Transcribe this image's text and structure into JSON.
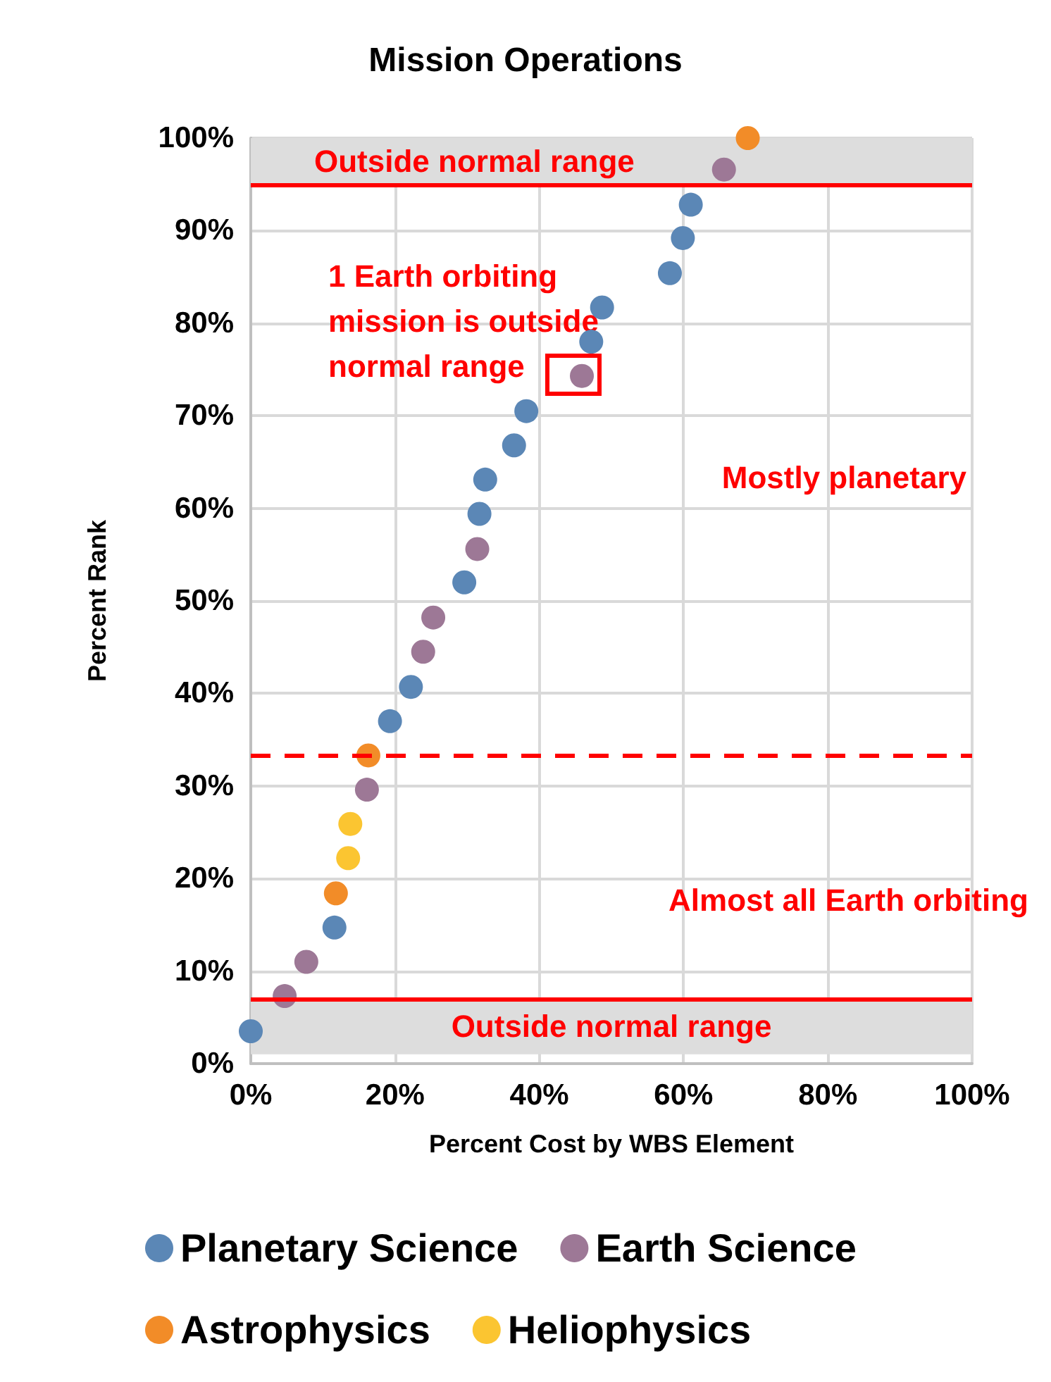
{
  "chart_data": {
    "type": "scatter",
    "title": "Mission Operations",
    "xlabel": "Percent Cost by WBS Element",
    "ylabel": "Percent Rank",
    "series": [
      {
        "name": "Planetary Science",
        "color": "#5b87b6",
        "x": [
          0,
          11.6,
          19.3,
          22.2,
          29.6,
          31.7,
          32.5,
          36.5,
          38.2,
          47.2,
          48.7,
          58.1,
          59.9,
          61.0
        ],
        "values": [
          3.5,
          14.7,
          37.0,
          40.7,
          52.0,
          59.4,
          63.1,
          66.8,
          70.5,
          78.0,
          81.7,
          85.4,
          89.2,
          92.8
        ]
      },
      {
        "name": "Earth Science",
        "color": "#9d7896",
        "x": [
          4.7,
          7.7,
          16.1,
          23.9,
          25.3,
          31.4,
          45.9,
          65.6
        ],
        "values": [
          7.3,
          11.0,
          29.6,
          44.5,
          48.2,
          55.6,
          74.3,
          96.6
        ]
      },
      {
        "name": "Astrophysics",
        "color": "#f28c28",
        "x": [
          11.8,
          16.3,
          68.9
        ],
        "values": [
          18.4,
          33.3,
          100
        ]
      },
      {
        "name": "Heliophysics",
        "color": "#fbc531",
        "x": [
          13.5,
          13.8
        ],
        "values": [
          22.2,
          25.9
        ]
      }
    ],
    "xlim": [
      0,
      100
    ],
    "ylim": [
      0,
      100
    ],
    "xticks": [
      {
        "value": 0,
        "label": "0%"
      },
      {
        "value": 20,
        "label": "20%"
      },
      {
        "value": 40,
        "label": "40%"
      },
      {
        "value": 60,
        "label": "60%"
      },
      {
        "value": 80,
        "label": "80%"
      },
      {
        "value": 100,
        "label": "100%"
      }
    ],
    "yticks": [
      {
        "value": 0,
        "label": "0%"
      },
      {
        "value": 10,
        "label": "10%"
      },
      {
        "value": 20,
        "label": "20%"
      },
      {
        "value": 30,
        "label": "30%"
      },
      {
        "value": 40,
        "label": "40%"
      },
      {
        "value": 50,
        "label": "50%"
      },
      {
        "value": 60,
        "label": "60%"
      },
      {
        "value": 70,
        "label": "70%"
      },
      {
        "value": 80,
        "label": "80%"
      },
      {
        "value": 90,
        "label": "90%"
      },
      {
        "value": 100,
        "label": "100%"
      }
    ],
    "ref_lines": [
      {
        "axis": "y",
        "value": 95,
        "color": "#ff0000",
        "line_style": "solid"
      },
      {
        "axis": "y",
        "value": 7,
        "color": "#ff0000",
        "line_style": "solid"
      },
      {
        "axis": "y",
        "value": 33.3,
        "color": "#ff0000",
        "line_style": "dashed"
      }
    ],
    "bands": [
      {
        "axis": "y",
        "from": 95,
        "to": 100,
        "label": "Outside normal range",
        "color": "#dddddd"
      },
      {
        "axis": "y",
        "from": 1,
        "to": 7,
        "label": "Outside normal range",
        "color": "#dddddd"
      }
    ],
    "annotations": [
      {
        "text": "1 Earth orbiting mission is outside normal range",
        "x": 45.9,
        "y": 74.3
      },
      "Mostly planetary",
      "Almost all Earth orbiting"
    ],
    "grid": true,
    "legend": "bottom",
    "marker": "circle"
  }
}
